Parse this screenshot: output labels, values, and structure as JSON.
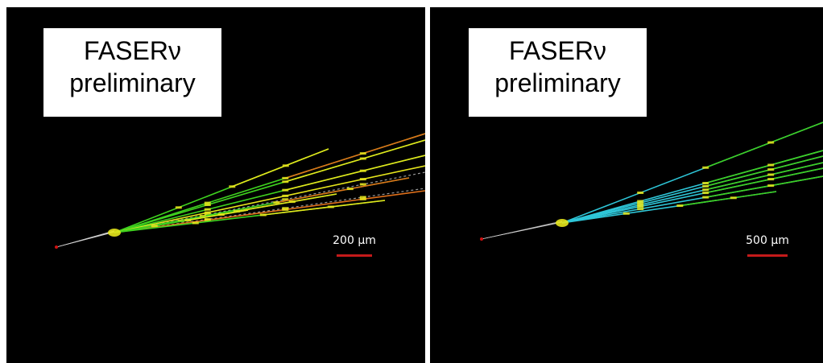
{
  "panels": [
    {
      "label_line1": "FASERν",
      "label_line2": "preliminary",
      "scale_label": "200 μm",
      "scale_bar_color": "#c41a1a"
    },
    {
      "label_line1": "FASERν",
      "label_line2": "preliminary",
      "scale_label": "500 μm",
      "scale_bar_color": "#c41a1a"
    }
  ],
  "colors": {
    "background": "#000000",
    "vertex": "#d01010",
    "track_green": "#3fd21f",
    "track_yellow": "#e6e61c",
    "track_orange": "#e0701a",
    "track_cyan": "#2ec6d8"
  }
}
